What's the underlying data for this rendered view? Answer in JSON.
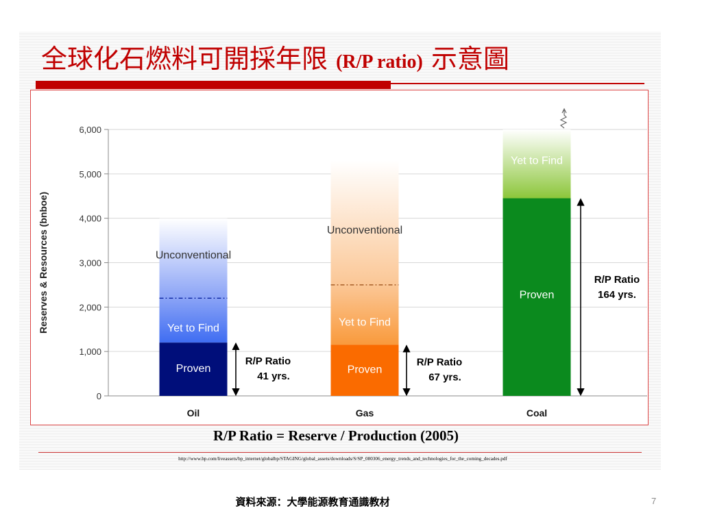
{
  "slide": {
    "title_zh_1": "全球化石燃料可開採年限",
    "title_en": "(R/P ratio)",
    "title_zh_2": "示意圖",
    "formula": "R/P Ratio = Reserve / Production (2005)",
    "url": "http://www.bp.com/liveassets/bp_internet/globalbp/STAGING/global_assets/downloads/S/SP_080306_energy_trends_and_technologies_for_the_coming_decades.pdf",
    "source": "資料來源：大學能源教育通識教材",
    "page_number": "7"
  },
  "colors": {
    "title_red": "#c00000",
    "oil_proven": "#000e7a",
    "oil_yet": "#3f6df2",
    "gas_proven": "#fa6b00",
    "gas_yet": "#f99a3c",
    "coal_proven": "#0b8a1e",
    "coal_yet": "#8cc63a"
  },
  "chart_data": {
    "type": "bar",
    "ylabel": "Reserves & Resources (bnboe)",
    "ylim": [
      0,
      6000
    ],
    "yticks": [
      0,
      1000,
      2000,
      3000,
      4000,
      5000,
      6000
    ],
    "ytick_labels": [
      "0",
      "1,000",
      "2,000",
      "3,000",
      "4,000",
      "5,000",
      "6,000"
    ],
    "grid": true,
    "categories": [
      "Oil",
      "Gas",
      "Coal"
    ],
    "bars": [
      {
        "category": "Oil",
        "proven": 1200,
        "yet_to_find": 2200,
        "unconventional": 4000,
        "proven_label": "Proven",
        "yet_label": "Yet to Find",
        "unconv_label": "Unconventional",
        "rp_label_1": "R/P Ratio",
        "rp_label_2": "41 yrs."
      },
      {
        "category": "Gas",
        "proven": 1150,
        "yet_to_find": 2500,
        "unconventional": 5300,
        "proven_label": "Proven",
        "yet_label": "Yet to Find",
        "unconv_label": "Unconventional",
        "rp_label_1": "R/P Ratio",
        "rp_label_2": "67 yrs."
      },
      {
        "category": "Coal",
        "proven": 4450,
        "yet_to_find": 6000,
        "proven_label": "Proven",
        "yet_label": "Yet to Find",
        "rp_label_1": "R/P Ratio",
        "rp_label_2": "164 yrs."
      }
    ]
  }
}
